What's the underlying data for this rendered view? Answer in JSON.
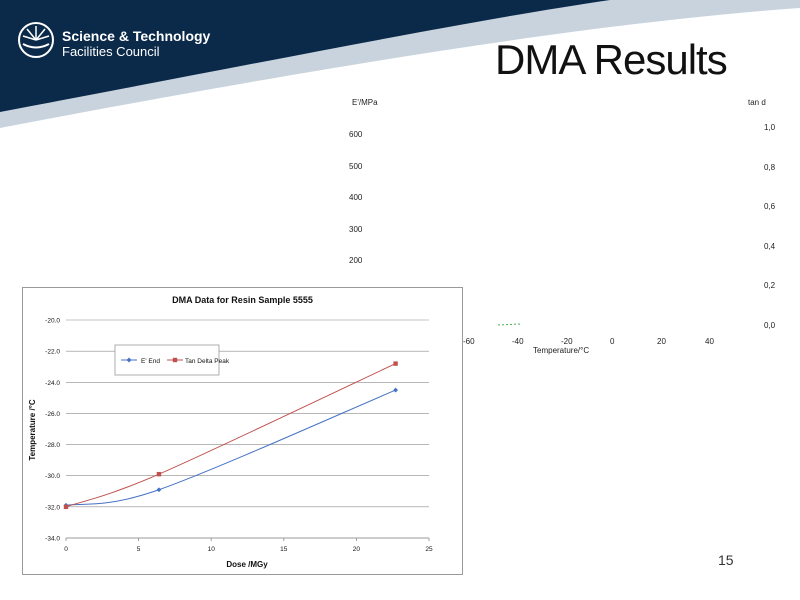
{
  "org": {
    "line1": "Science & Technology",
    "line2": "Facilities Council"
  },
  "slide": {
    "title": "DMA Results",
    "page_number": "15"
  },
  "colors": {
    "banner": "#0b2a4a",
    "banner_accent": "#c9d3de",
    "series_e_end": "#4472c4",
    "series_tan_delta": "#c0504d"
  },
  "background_plot": {
    "left_axis_label": "E'/MPa",
    "right_axis_label": "tan d",
    "left_ticks": [
      "600",
      "500",
      "400",
      "300",
      "200"
    ],
    "right_ticks": [
      "1,0",
      "0,8",
      "0,6",
      "0,4",
      "0,2",
      "0,0"
    ],
    "x_ticks": [
      "-60",
      "-40",
      "-20",
      "0",
      "20",
      "40"
    ],
    "x_label": "Temperature/°C"
  },
  "chart_data": {
    "type": "line",
    "title": "DMA Data for Resin Sample 5555",
    "xlabel": "Dose /MGy",
    "ylabel": "Temperature /°C",
    "xlim": [
      0,
      25
    ],
    "ylim": [
      -34,
      -20
    ],
    "x_ticks": [
      "0",
      "5",
      "10",
      "15",
      "20",
      "25"
    ],
    "y_ticks": [
      "-20.0",
      "-22.0",
      "-24.0",
      "-26.0",
      "-28.0",
      "-30.0",
      "-32.0",
      "-34.0"
    ],
    "legend_placement": "top-left",
    "grid": true,
    "series": [
      {
        "name": "E' End",
        "x": [
          0,
          6.4,
          22.7
        ],
        "y": [
          -31.9,
          -30.9,
          -24.5
        ]
      },
      {
        "name": "Tan Delta Peak",
        "x": [
          0,
          6.4,
          22.7
        ],
        "y": [
          -32.0,
          -29.9,
          -22.8
        ]
      }
    ]
  }
}
